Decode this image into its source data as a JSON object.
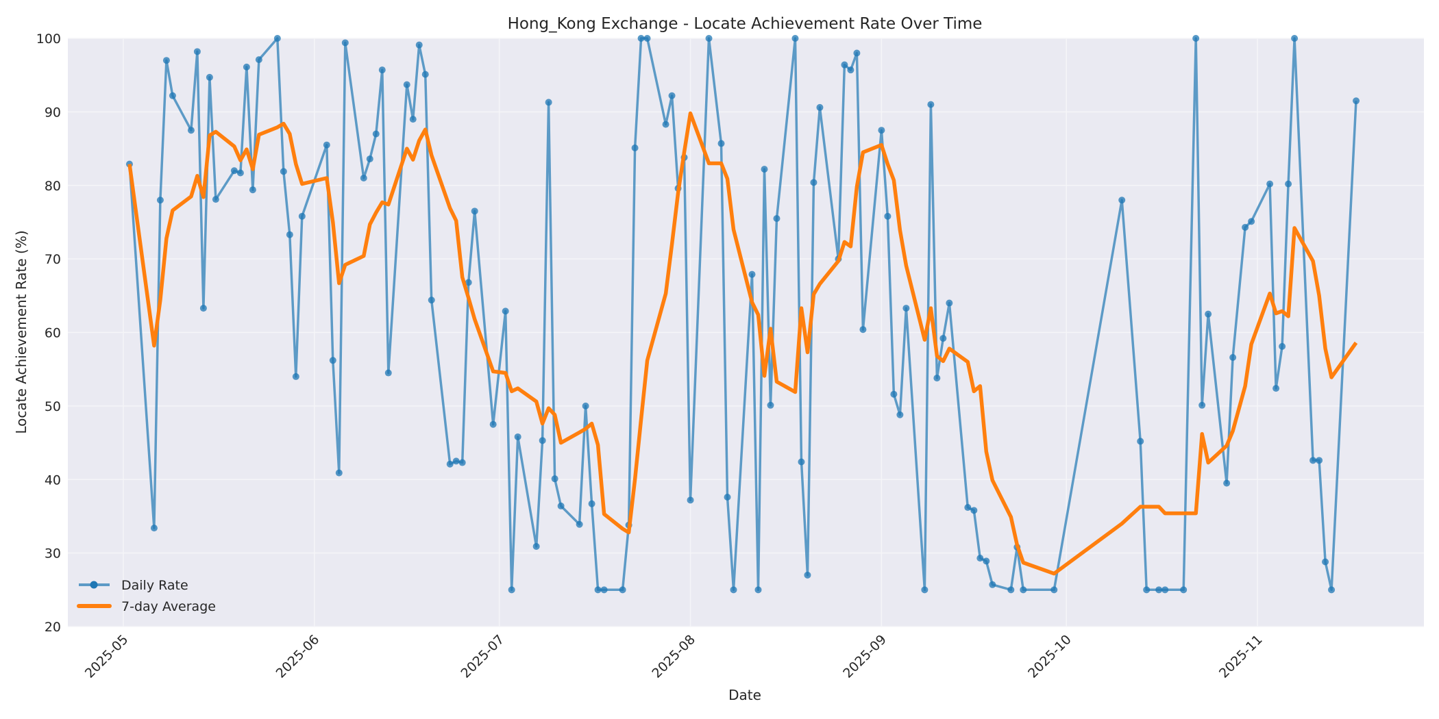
{
  "chart_data": {
    "type": "line",
    "title": "Hong_Kong Exchange - Locate Achievement Rate Over Time",
    "xlabel": "Date",
    "ylabel": "Locate Achievement Rate (%)",
    "ylim": [
      20,
      100
    ],
    "yticks": [
      20,
      30,
      40,
      50,
      60,
      70,
      80,
      90,
      100
    ],
    "xlim": [
      "2025-04-22",
      "2025-11-28"
    ],
    "xticks": [
      "2025-05",
      "2025-06",
      "2025-07",
      "2025-08",
      "2025-09",
      "2025-10",
      "2025-11"
    ],
    "xtick_dates": [
      "2025-05-01",
      "2025-06-01",
      "2025-07-01",
      "2025-08-01",
      "2025-09-01",
      "2025-10-01",
      "2025-11-01"
    ],
    "grid": true,
    "legend_position": "lower left",
    "series": [
      {
        "name": "Daily Rate",
        "color": "#1f77b4",
        "style": "line+markers",
        "x": [
          "2025-05-02",
          "2025-05-06",
          "2025-05-07",
          "2025-05-08",
          "2025-05-09",
          "2025-05-12",
          "2025-05-13",
          "2025-05-14",
          "2025-05-15",
          "2025-05-16",
          "2025-05-19",
          "2025-05-20",
          "2025-05-21",
          "2025-05-22",
          "2025-05-23",
          "2025-05-26",
          "2025-05-27",
          "2025-05-28",
          "2025-05-29",
          "2025-05-30",
          "2025-06-03",
          "2025-06-04",
          "2025-06-05",
          "2025-06-06",
          "2025-06-09",
          "2025-06-10",
          "2025-06-11",
          "2025-06-12",
          "2025-06-13",
          "2025-06-16",
          "2025-06-17",
          "2025-06-18",
          "2025-06-19",
          "2025-06-20",
          "2025-06-23",
          "2025-06-24",
          "2025-06-25",
          "2025-06-26",
          "2025-06-27",
          "2025-06-30",
          "2025-07-02",
          "2025-07-03",
          "2025-07-04",
          "2025-07-07",
          "2025-07-08",
          "2025-07-09",
          "2025-07-10",
          "2025-07-11",
          "2025-07-14",
          "2025-07-15",
          "2025-07-16",
          "2025-07-17",
          "2025-07-18",
          "2025-07-21",
          "2025-07-22",
          "2025-07-23",
          "2025-07-24",
          "2025-07-25",
          "2025-07-28",
          "2025-07-29",
          "2025-07-30",
          "2025-07-31",
          "2025-08-01",
          "2025-08-04",
          "2025-08-06",
          "2025-08-07",
          "2025-08-08",
          "2025-08-11",
          "2025-08-12",
          "2025-08-13",
          "2025-08-14",
          "2025-08-15",
          "2025-08-18",
          "2025-08-19",
          "2025-08-20",
          "2025-08-21",
          "2025-08-22",
          "2025-08-25",
          "2025-08-26",
          "2025-08-27",
          "2025-08-28",
          "2025-08-29",
          "2025-09-01",
          "2025-09-02",
          "2025-09-03",
          "2025-09-04",
          "2025-09-05",
          "2025-09-08",
          "2025-09-09",
          "2025-09-10",
          "2025-09-11",
          "2025-09-12",
          "2025-09-15",
          "2025-09-16",
          "2025-09-17",
          "2025-09-18",
          "2025-09-19",
          "2025-09-22",
          "2025-09-23",
          "2025-09-24",
          "2025-09-29",
          "2025-10-10",
          "2025-10-13",
          "2025-10-14",
          "2025-10-16",
          "2025-10-17",
          "2025-10-20",
          "2025-10-22",
          "2025-10-23",
          "2025-10-24",
          "2025-10-27",
          "2025-10-28",
          "2025-10-30",
          "2025-10-31",
          "2025-11-03",
          "2025-11-04",
          "2025-11-05",
          "2025-11-06",
          "2025-11-07",
          "2025-11-10",
          "2025-11-11",
          "2025-11-12",
          "2025-11-13",
          "2025-11-17"
        ],
        "values": [
          82.9,
          33.4,
          78.0,
          97.0,
          92.2,
          87.5,
          98.2,
          63.3,
          94.7,
          78.1,
          82.0,
          81.7,
          96.1,
          79.4,
          97.1,
          100.0,
          81.9,
          73.3,
          54.0,
          75.8,
          85.5,
          56.2,
          40.9,
          99.4,
          81.0,
          83.6,
          87.0,
          95.7,
          54.5,
          93.7,
          89.0,
          99.1,
          95.1,
          64.4,
          42.1,
          42.5,
          42.3,
          66.8,
          76.5,
          47.5,
          62.9,
          25.0,
          45.8,
          30.9,
          45.3,
          91.3,
          40.1,
          36.4,
          33.9,
          50.0,
          36.7,
          25.0,
          25.0,
          25.0,
          33.8,
          85.1,
          100.0,
          100.0,
          88.3,
          92.2,
          79.6,
          83.8,
          37.2,
          100.0,
          85.7,
          37.6,
          25.0,
          67.9,
          25.0,
          82.2,
          50.1,
          75.5,
          100.0,
          42.4,
          27.0,
          80.4,
          90.6,
          70.0,
          96.4,
          95.7,
          98.0,
          60.4,
          87.5,
          75.8,
          51.6,
          48.8,
          63.3,
          25.0,
          91.0,
          53.8,
          59.2,
          64.0,
          36.2,
          35.8,
          29.3,
          28.9,
          25.7,
          25.0,
          30.8,
          25.0,
          25.0,
          78.0,
          45.2,
          25.0,
          25.0,
          25.0,
          25.0,
          100.0,
          50.1,
          62.5,
          39.5,
          56.6,
          74.3,
          75.1,
          80.2,
          52.4,
          58.1,
          80.2,
          100.0,
          42.6,
          42.6,
          28.8,
          25.0,
          91.5
        ]
      },
      {
        "name": "7-day Average",
        "color": "#ff7f0e",
        "style": "line",
        "x": [
          "2025-05-02",
          "2025-05-06",
          "2025-05-07",
          "2025-05-08",
          "2025-05-09",
          "2025-05-12",
          "2025-05-13",
          "2025-05-14",
          "2025-05-15",
          "2025-05-16",
          "2025-05-19",
          "2025-05-20",
          "2025-05-21",
          "2025-05-22",
          "2025-05-23",
          "2025-05-26",
          "2025-05-27",
          "2025-05-28",
          "2025-05-29",
          "2025-05-30",
          "2025-06-03",
          "2025-06-04",
          "2025-06-05",
          "2025-06-06",
          "2025-06-09",
          "2025-06-10",
          "2025-06-11",
          "2025-06-12",
          "2025-06-13",
          "2025-06-16",
          "2025-06-17",
          "2025-06-18",
          "2025-06-19",
          "2025-06-20",
          "2025-06-23",
          "2025-06-24",
          "2025-06-25",
          "2025-06-26",
          "2025-06-27",
          "2025-06-30",
          "2025-07-02",
          "2025-07-03",
          "2025-07-04",
          "2025-07-07",
          "2025-07-08",
          "2025-07-09",
          "2025-07-10",
          "2025-07-11",
          "2025-07-14",
          "2025-07-15",
          "2025-07-16",
          "2025-07-17",
          "2025-07-18",
          "2025-07-21",
          "2025-07-22",
          "2025-07-23",
          "2025-07-24",
          "2025-07-25",
          "2025-07-28",
          "2025-07-29",
          "2025-07-30",
          "2025-07-31",
          "2025-08-01",
          "2025-08-04",
          "2025-08-06",
          "2025-08-07",
          "2025-08-08",
          "2025-08-11",
          "2025-08-12",
          "2025-08-13",
          "2025-08-14",
          "2025-08-15",
          "2025-08-18",
          "2025-08-19",
          "2025-08-20",
          "2025-08-21",
          "2025-08-22",
          "2025-08-25",
          "2025-08-26",
          "2025-08-27",
          "2025-08-28",
          "2025-08-29",
          "2025-09-01",
          "2025-09-02",
          "2025-09-03",
          "2025-09-04",
          "2025-09-05",
          "2025-09-08",
          "2025-09-09",
          "2025-09-10",
          "2025-09-11",
          "2025-09-12",
          "2025-09-15",
          "2025-09-16",
          "2025-09-17",
          "2025-09-18",
          "2025-09-19",
          "2025-09-22",
          "2025-09-23",
          "2025-09-24",
          "2025-09-29",
          "2025-10-10",
          "2025-10-13",
          "2025-10-14",
          "2025-10-16",
          "2025-10-17",
          "2025-10-20",
          "2025-10-22",
          "2025-10-23",
          "2025-10-24",
          "2025-10-27",
          "2025-10-28",
          "2025-10-30",
          "2025-10-31",
          "2025-11-03",
          "2025-11-04",
          "2025-11-05",
          "2025-11-06",
          "2025-11-07",
          "2025-11-10",
          "2025-11-11",
          "2025-11-12",
          "2025-11-13",
          "2025-11-17"
        ],
        "values": [
          82.9,
          58.2,
          64.4,
          72.8,
          76.6,
          78.5,
          81.3,
          78.4,
          86.8,
          87.3,
          85.3,
          83.4,
          84.9,
          82.2,
          86.9,
          87.9,
          88.4,
          87.0,
          82.9,
          80.2,
          81.0,
          75.0,
          66.7,
          69.2,
          70.4,
          74.7,
          76.3,
          77.7,
          77.4,
          85.0,
          83.5,
          86.1,
          87.6,
          84.1,
          76.9,
          75.2,
          67.5,
          64.7,
          61.8,
          54.7,
          54.5,
          52.0,
          52.4,
          50.6,
          47.6,
          49.7,
          48.8,
          45.0,
          46.4,
          46.9,
          47.6,
          44.7,
          35.3,
          33.3,
          32.8,
          40.0,
          48.2,
          56.2,
          65.3,
          72.0,
          79.0,
          84.5,
          89.8,
          83.0,
          83.0,
          80.9,
          74.0,
          64.1,
          62.4,
          54.1,
          60.5,
          53.3,
          51.9,
          63.3,
          57.3,
          65.2,
          66.6,
          69.7,
          72.3,
          71.7,
          79.8,
          84.5,
          85.5,
          82.9,
          80.7,
          73.9,
          69.1,
          59.0,
          63.3,
          56.8,
          56.1,
          57.8,
          56.0,
          52.0,
          52.7,
          43.8,
          39.9,
          34.9,
          31.1,
          28.7,
          27.2,
          34.0,
          36.3,
          36.3,
          36.3,
          35.4,
          35.4,
          35.4,
          46.2,
          42.3,
          44.6,
          46.6,
          52.7,
          58.4,
          65.3,
          62.6,
          62.9,
          62.2,
          74.2,
          69.7,
          65.0,
          57.8,
          53.9,
          58.6
        ]
      }
    ]
  },
  "title": "Hong_Kong Exchange - Locate Achievement Rate Over Time",
  "xaxis": {
    "label": "Date",
    "ticks": [
      "2025-05",
      "2025-06",
      "2025-07",
      "2025-08",
      "2025-09",
      "2025-10",
      "2025-11"
    ]
  },
  "yaxis": {
    "label": "Locate Achievement Rate (%)",
    "ticks": [
      "20",
      "30",
      "40",
      "50",
      "60",
      "70",
      "80",
      "90",
      "100"
    ]
  },
  "legend": {
    "items": [
      {
        "label": "Daily Rate",
        "color": "#1f77b4"
      },
      {
        "label": "7-day Average",
        "color": "#ff7f0e"
      }
    ]
  },
  "colors": {
    "plot_bg": "#eaeaf2",
    "grid": "#f5f5f8",
    "daily": "#1f77b4",
    "average": "#ff7f0e",
    "text": "#262626"
  }
}
